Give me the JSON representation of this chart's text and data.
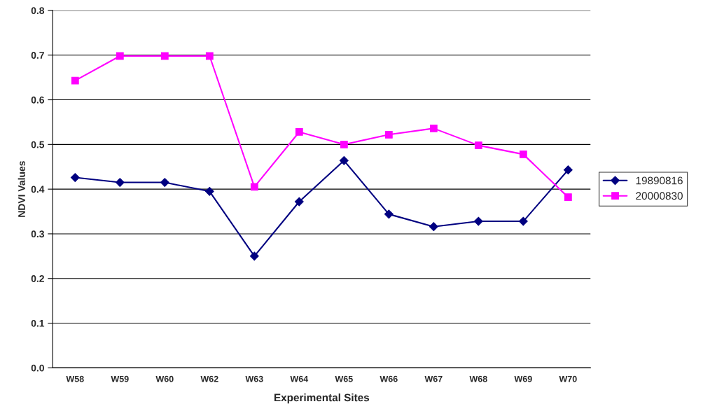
{
  "chart_data": {
    "type": "line",
    "xlabel": "Experimental Sites",
    "ylabel": "NDVI Values",
    "categories": [
      "W58",
      "W59",
      "W60",
      "W62",
      "W63",
      "W64",
      "W65",
      "W66",
      "W67",
      "W68",
      "W69",
      "W70"
    ],
    "series": [
      {
        "name": "19890816",
        "color": "#000080",
        "marker": "diamond",
        "values": [
          0.426,
          0.415,
          0.415,
          0.395,
          0.25,
          0.372,
          0.464,
          0.344,
          0.316,
          0.328,
          0.328,
          0.443
        ]
      },
      {
        "name": "20000830",
        "color": "#ff00ff",
        "marker": "square",
        "values": [
          0.643,
          0.698,
          0.698,
          0.698,
          0.405,
          0.528,
          0.5,
          0.522,
          0.536,
          0.498,
          0.478,
          0.382
        ]
      }
    ],
    "ylim": [
      0,
      0.8
    ],
    "yticks": [
      {
        "value": 0,
        "label": "0.0"
      },
      {
        "value": 0.1,
        "label": "0.1"
      },
      {
        "value": 0.2,
        "label": "0.2"
      },
      {
        "value": 0.3,
        "label": "0.3"
      },
      {
        "value": 0.4,
        "label": "0.4"
      },
      {
        "value": 0.5,
        "label": "0.5"
      },
      {
        "value": 0.6,
        "label": "0.6"
      },
      {
        "value": 0.7,
        "label": "0.7"
      },
      {
        "value": 0.8,
        "label": "0.8"
      }
    ],
    "grid": "y",
    "legend": "right",
    "line_style": "solid"
  }
}
